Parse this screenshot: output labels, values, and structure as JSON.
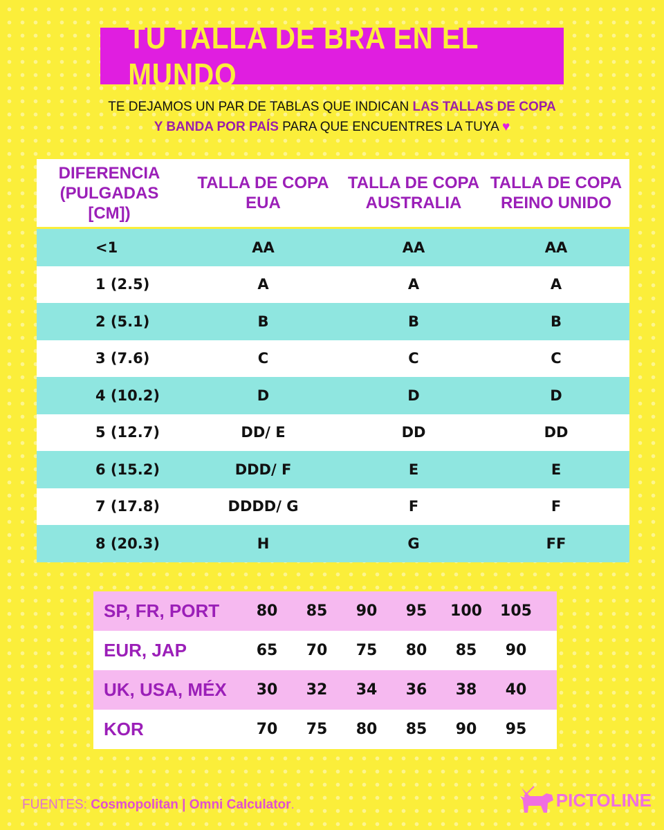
{
  "title": "TU TALLA DE BRA EN EL MUNDO",
  "subtitle": {
    "line1_plain": "TE DEJAMOS UN PAR DE TABLAS QUE INDICAN ",
    "line1_highlight": "LAS TALLAS DE COPA",
    "line2_highlight": "Y BANDA POR PAÍS",
    "line2_plain": " PARA QUE ENCUENTRES LA TUYA ",
    "heart": "♥"
  },
  "cup_table": {
    "headers": [
      "DIFERENCIA (PULGADAS [CM])",
      "TALLA DE COPA EUA",
      "TALLA DE COPA AUSTRALIA",
      "TALLA DE COPA REINO UNIDO"
    ],
    "rows": [
      [
        "<1",
        "AA",
        "AA",
        "AA"
      ],
      [
        "1 (2.5)",
        "A",
        "A",
        "A"
      ],
      [
        "2 (5.1)",
        "B",
        "B",
        "B"
      ],
      [
        "3 (7.6)",
        "C",
        "C",
        "C"
      ],
      [
        "4 (10.2)",
        "D",
        "D",
        "D"
      ],
      [
        "5 (12.7)",
        "DD/ E",
        "DD",
        "DD"
      ],
      [
        "6 (15.2)",
        "DDD/ F",
        "E",
        "E"
      ],
      [
        "7 (17.8)",
        "DDDD/ G",
        "F",
        "F"
      ],
      [
        "8 (20.3)",
        "H",
        "G",
        "FF"
      ]
    ]
  },
  "band_table": {
    "rows": [
      {
        "label": "SP, FR, PORT",
        "values": [
          "80",
          "85",
          "90",
          "95",
          "100",
          "105"
        ]
      },
      {
        "label": "EUR, JAP",
        "values": [
          "65",
          "70",
          "75",
          "80",
          "85",
          "90"
        ]
      },
      {
        "label": "UK, USA, MÉX",
        "values": [
          "30",
          "32",
          "34",
          "36",
          "38",
          "40"
        ]
      },
      {
        "label": "KOR",
        "values": [
          "70",
          "75",
          "80",
          "85",
          "90",
          "95"
        ]
      }
    ]
  },
  "footer": {
    "prefix": "FUENTES: ",
    "sources": "Cosmopolitan | Omni Calculator",
    "suffix": "."
  },
  "logo": {
    "text": "PICTOLINE",
    "icon": "dog-icon"
  },
  "colors": {
    "background": "#fbee3a",
    "title_bg": "#e01ee0",
    "accent_purple": "#9b1fb8",
    "teal_row": "#8fe6e0",
    "pink_row": "#f6b9f0"
  }
}
